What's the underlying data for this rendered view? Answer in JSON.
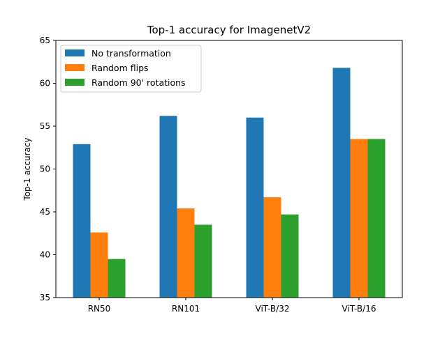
{
  "chart_data": {
    "type": "bar",
    "title": "Top-1 accuracy for ImagenetV2",
    "xlabel": "",
    "ylabel": "Top-1 accuracy",
    "categories": [
      "RN50",
      "RN101",
      "ViT-B/32",
      "ViT-B/16"
    ],
    "series": [
      {
        "name": "No transformation",
        "color": "#1f77b4",
        "values": [
          52.9,
          56.2,
          56.0,
          61.8
        ]
      },
      {
        "name": "Random flips",
        "color": "#ff7f0e",
        "values": [
          42.6,
          45.4,
          46.7,
          53.5
        ]
      },
      {
        "name": "Random 90' rotations",
        "color": "#2ca02c",
        "values": [
          39.5,
          43.5,
          44.7,
          53.5
        ]
      }
    ],
    "ylim": [
      35,
      65
    ],
    "yticks": [
      35,
      40,
      45,
      50,
      55,
      60,
      65
    ],
    "grid": false,
    "legend_position": "top-left"
  }
}
